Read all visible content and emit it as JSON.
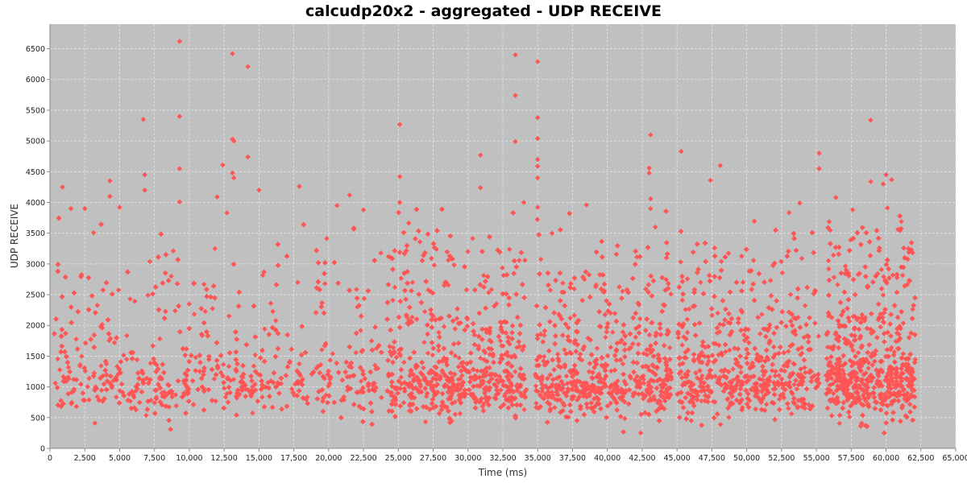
{
  "chart_data": {
    "type": "scatter",
    "title": "calcudp20x2 - aggregated - UDP RECEIVE",
    "xlabel": "Time (ms)",
    "ylabel": "UDP RECEIVE",
    "xlim": [
      0,
      65000
    ],
    "ylim": [
      0,
      6900
    ],
    "x_ticks": [
      0,
      2500,
      5000,
      7500,
      10000,
      12500,
      15000,
      17500,
      20000,
      22500,
      25000,
      27500,
      30000,
      32500,
      35000,
      37500,
      40000,
      42500,
      45000,
      47500,
      50000,
      52500,
      55000,
      57500,
      60000,
      62500,
      65000
    ],
    "x_tick_labels": [
      "0",
      "2,500",
      "5,000",
      "7,500",
      "10,000",
      "12,500",
      "15,000",
      "17,500",
      "20,000",
      "22,500",
      "25,000",
      "27,500",
      "30,000",
      "32,500",
      "35,000",
      "37,500",
      "40,000",
      "42,500",
      "45,000",
      "47,500",
      "50,000",
      "52,500",
      "55,000",
      "57,500",
      "60,000",
      "62,500",
      "65,000"
    ],
    "y_ticks": [
      0,
      500,
      1000,
      1500,
      2000,
      2500,
      3000,
      3500,
      4000,
      4500,
      5000,
      5500,
      6000,
      6500
    ],
    "y_tick_labels": [
      "0",
      "500",
      "1000",
      "1500",
      "2000",
      "2500",
      "3000",
      "3500",
      "4000",
      "4500",
      "5000",
      "5500",
      "6000",
      "6500"
    ],
    "grid": true,
    "legend": "none",
    "colors": {
      "marker": "#ff5555",
      "plot_background": "#c0c0c0",
      "grid": "#e6e6e6"
    },
    "marker": "diamond",
    "series": [
      {
        "points": [
          [
            9300,
            6620
          ],
          [
            13100,
            6420
          ],
          [
            14200,
            6210
          ],
          [
            33400,
            6400
          ],
          [
            35000,
            6290
          ],
          [
            33400,
            5740
          ],
          [
            35000,
            5380
          ],
          [
            6700,
            5350
          ],
          [
            9300,
            5400
          ],
          [
            25100,
            5270
          ],
          [
            58900,
            5340
          ],
          [
            43100,
            5100
          ],
          [
            13100,
            5030
          ],
          [
            13200,
            5000
          ],
          [
            35000,
            5040
          ],
          [
            33400,
            4990
          ],
          [
            45300,
            4830
          ],
          [
            55200,
            4800
          ],
          [
            30900,
            4770
          ],
          [
            14200,
            4740
          ],
          [
            35000,
            4700
          ],
          [
            35000,
            4590
          ],
          [
            48100,
            4600
          ],
          [
            12400,
            4610
          ],
          [
            9300,
            4550
          ],
          [
            43000,
            4560
          ],
          [
            55200,
            4550
          ],
          [
            13100,
            4480
          ],
          [
            6800,
            4450
          ],
          [
            60000,
            4450
          ],
          [
            25100,
            4420
          ],
          [
            43000,
            4480
          ],
          [
            35000,
            4400
          ],
          [
            13200,
            4400
          ],
          [
            60400,
            4370
          ],
          [
            4300,
            4350
          ],
          [
            47400,
            4360
          ],
          [
            58900,
            4340
          ],
          [
            59800,
            4300
          ],
          [
            900,
            4250
          ],
          [
            17900,
            4260
          ],
          [
            30900,
            4240
          ],
          [
            15000,
            4200
          ],
          [
            6800,
            4200
          ],
          [
            21500,
            4120
          ],
          [
            12000,
            4090
          ],
          [
            4300,
            4100
          ],
          [
            56400,
            4080
          ],
          [
            43100,
            4060
          ],
          [
            25100,
            4000
          ],
          [
            9300,
            4010
          ],
          [
            34000,
            4000
          ],
          [
            53800,
            3990
          ],
          [
            38500,
            3960
          ],
          [
            35000,
            3920
          ],
          [
            20600,
            3950
          ],
          [
            43100,
            3900
          ],
          [
            1500,
            3900
          ],
          [
            2500,
            3900
          ],
          [
            5000,
            3920
          ],
          [
            22500,
            3880
          ],
          [
            60100,
            3910
          ],
          [
            61100,
            3690
          ],
          [
            12700,
            3830
          ],
          [
            57600,
            3880
          ]
        ]
      }
    ]
  }
}
